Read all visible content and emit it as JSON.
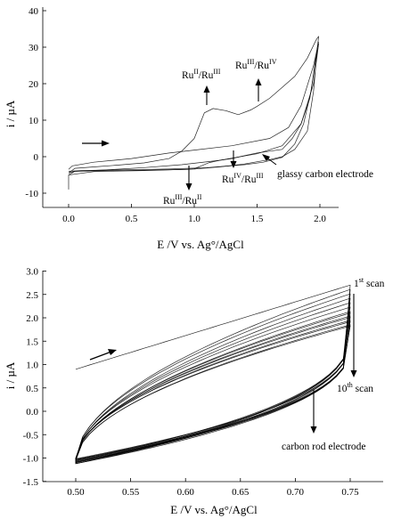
{
  "chart_data": [
    {
      "type": "line",
      "title": "",
      "xlabel": "E /V vs. Ag°/AgCl",
      "ylabel": "i / µA",
      "xlim": [
        -0.1,
        2.1
      ],
      "ylim": [
        -10,
        40
      ],
      "xticks": [
        "0.0",
        "0.5",
        "1.0",
        "1.5",
        "2.0"
      ],
      "yticks": [
        "-10",
        "0",
        "10",
        "20",
        "30",
        "40"
      ],
      "grid": false,
      "series": [
        {
          "values": [
            [
              0.0,
              -4.5
            ],
            [
              0.05,
              -3.2
            ],
            [
              0.2,
              -2.8
            ],
            [
              0.4,
              -2.3
            ],
            [
              0.6,
              -1.7
            ],
            [
              0.8,
              -0.5
            ],
            [
              0.9,
              1.5
            ],
            [
              1.0,
              5.0
            ],
            [
              1.08,
              12.0
            ],
            [
              1.15,
              13.2
            ],
            [
              1.25,
              12.6
            ],
            [
              1.35,
              11.5
            ],
            [
              1.45,
              12.8
            ],
            [
              1.5,
              13.8
            ],
            [
              1.6,
              16.0
            ],
            [
              1.7,
              19.0
            ],
            [
              1.8,
              22.0
            ],
            [
              1.9,
              27.0
            ],
            [
              1.97,
              32.0
            ],
            [
              1.99,
              33.0
            ],
            [
              1.97,
              27.0
            ],
            [
              1.92,
              16.0
            ],
            [
              1.85,
              9.0
            ],
            [
              1.78,
              5.0
            ],
            [
              1.7,
              2.0
            ],
            [
              1.6,
              1.5
            ],
            [
              1.5,
              1.0
            ],
            [
              1.4,
              0.3
            ],
            [
              1.3,
              -0.5
            ],
            [
              1.2,
              -1.0
            ],
            [
              1.12,
              -1.6
            ],
            [
              1.05,
              -2.6
            ],
            [
              1.0,
              -3.3
            ],
            [
              0.95,
              -3.5
            ],
            [
              0.8,
              -3.6
            ],
            [
              0.6,
              -3.7
            ],
            [
              0.4,
              -3.8
            ],
            [
              0.2,
              -3.9
            ],
            [
              0.05,
              -4.0
            ],
            [
              0.0,
              -4.5
            ]
          ]
        },
        {
          "values": [
            [
              0.0,
              -5.0
            ],
            [
              0.05,
              -4.0
            ],
            [
              0.3,
              -3.6
            ],
            [
              0.6,
              -3.0
            ],
            [
              0.9,
              -2.2
            ],
            [
              1.2,
              -1.0
            ],
            [
              1.5,
              0.8
            ],
            [
              1.7,
              3.0
            ],
            [
              1.85,
              9.0
            ],
            [
              1.95,
              20.0
            ],
            [
              1.99,
              31.0
            ],
            [
              1.98,
              30.0
            ],
            [
              1.95,
              18.0
            ],
            [
              1.9,
              7.0
            ],
            [
              1.8,
              2.0
            ],
            [
              1.7,
              0.0
            ],
            [
              1.6,
              -0.8
            ],
            [
              1.5,
              -1.4
            ],
            [
              1.4,
              -2.0
            ],
            [
              1.2,
              -2.8
            ],
            [
              1.0,
              -3.4
            ],
            [
              0.6,
              -3.8
            ],
            [
              0.2,
              -4.1
            ],
            [
              0.0,
              -5.0
            ],
            [
              0.0,
              -9.0
            ]
          ]
        },
        {
          "values": [
            [
              0.0,
              -3.5
            ],
            [
              0.03,
              -2.5
            ],
            [
              0.2,
              -1.5
            ],
            [
              0.5,
              -0.5
            ],
            [
              0.8,
              1.0
            ],
            [
              1.0,
              1.8
            ],
            [
              1.3,
              3.0
            ],
            [
              1.6,
              5.0
            ],
            [
              1.75,
              8.0
            ],
            [
              1.85,
              14.0
            ],
            [
              1.95,
              25.0
            ],
            [
              1.99,
              31.5
            ],
            [
              1.97,
              28.0
            ],
            [
              1.93,
              18.0
            ],
            [
              1.87,
              9.0
            ],
            [
              1.8,
              3.5
            ],
            [
              1.7,
              -0.2
            ],
            [
              1.55,
              -1.5
            ],
            [
              1.4,
              -2.2
            ],
            [
              1.1,
              -3.0
            ],
            [
              0.8,
              -3.4
            ],
            [
              0.4,
              -3.6
            ],
            [
              0.1,
              -3.8
            ],
            [
              0.0,
              -4.0
            ]
          ]
        }
      ],
      "annotations": [
        {
          "text": "Ru^II/Ru^III",
          "base": "Ru",
          "sup1": "II",
          "mid": "/Ru",
          "sup2": "III"
        },
        {
          "text": "Ru^III/Ru^IV",
          "base": "Ru",
          "sup1": "III",
          "mid": "/Ru",
          "sup2": "IV"
        },
        {
          "text": "Ru^III/Ru^II",
          "base": "Ru",
          "sup1": "III",
          "mid": "/Ru",
          "sup2": "II"
        },
        {
          "text": "Ru^IV/Ru^III",
          "base": "Ru",
          "sup1": "IV",
          "mid": "/Ru",
          "sup2": "III"
        },
        {
          "text": "glassy carbon electrode"
        }
      ]
    },
    {
      "type": "line",
      "title": "",
      "xlabel": "E /V vs. Ag°/AgCl",
      "ylabel": "i / µA",
      "xlim": [
        0.49,
        0.76
      ],
      "ylim": [
        -1.5,
        3.0
      ],
      "xticks": [
        "0.50",
        "0.55",
        "0.60",
        "0.65",
        "0.70",
        "0.75"
      ],
      "yticks": [
        "-1.5",
        "-1.0",
        "-0.5",
        "0.0",
        "0.5",
        "1.0",
        "1.5",
        "2.0",
        "2.5",
        "3.0"
      ],
      "grid": false,
      "scans": 10,
      "first_scan": {
        "start": [
          0.5,
          0.9
        ],
        "end": [
          0.75,
          2.7
        ]
      },
      "annotations": [
        {
          "text": "1st scan",
          "base": "1",
          "sup1": "st",
          "mid": " scan"
        },
        {
          "text": "10th scan",
          "base": "10",
          "sup1": "th",
          "mid": " scan"
        },
        {
          "text": "carbon rod electrode"
        }
      ]
    }
  ]
}
